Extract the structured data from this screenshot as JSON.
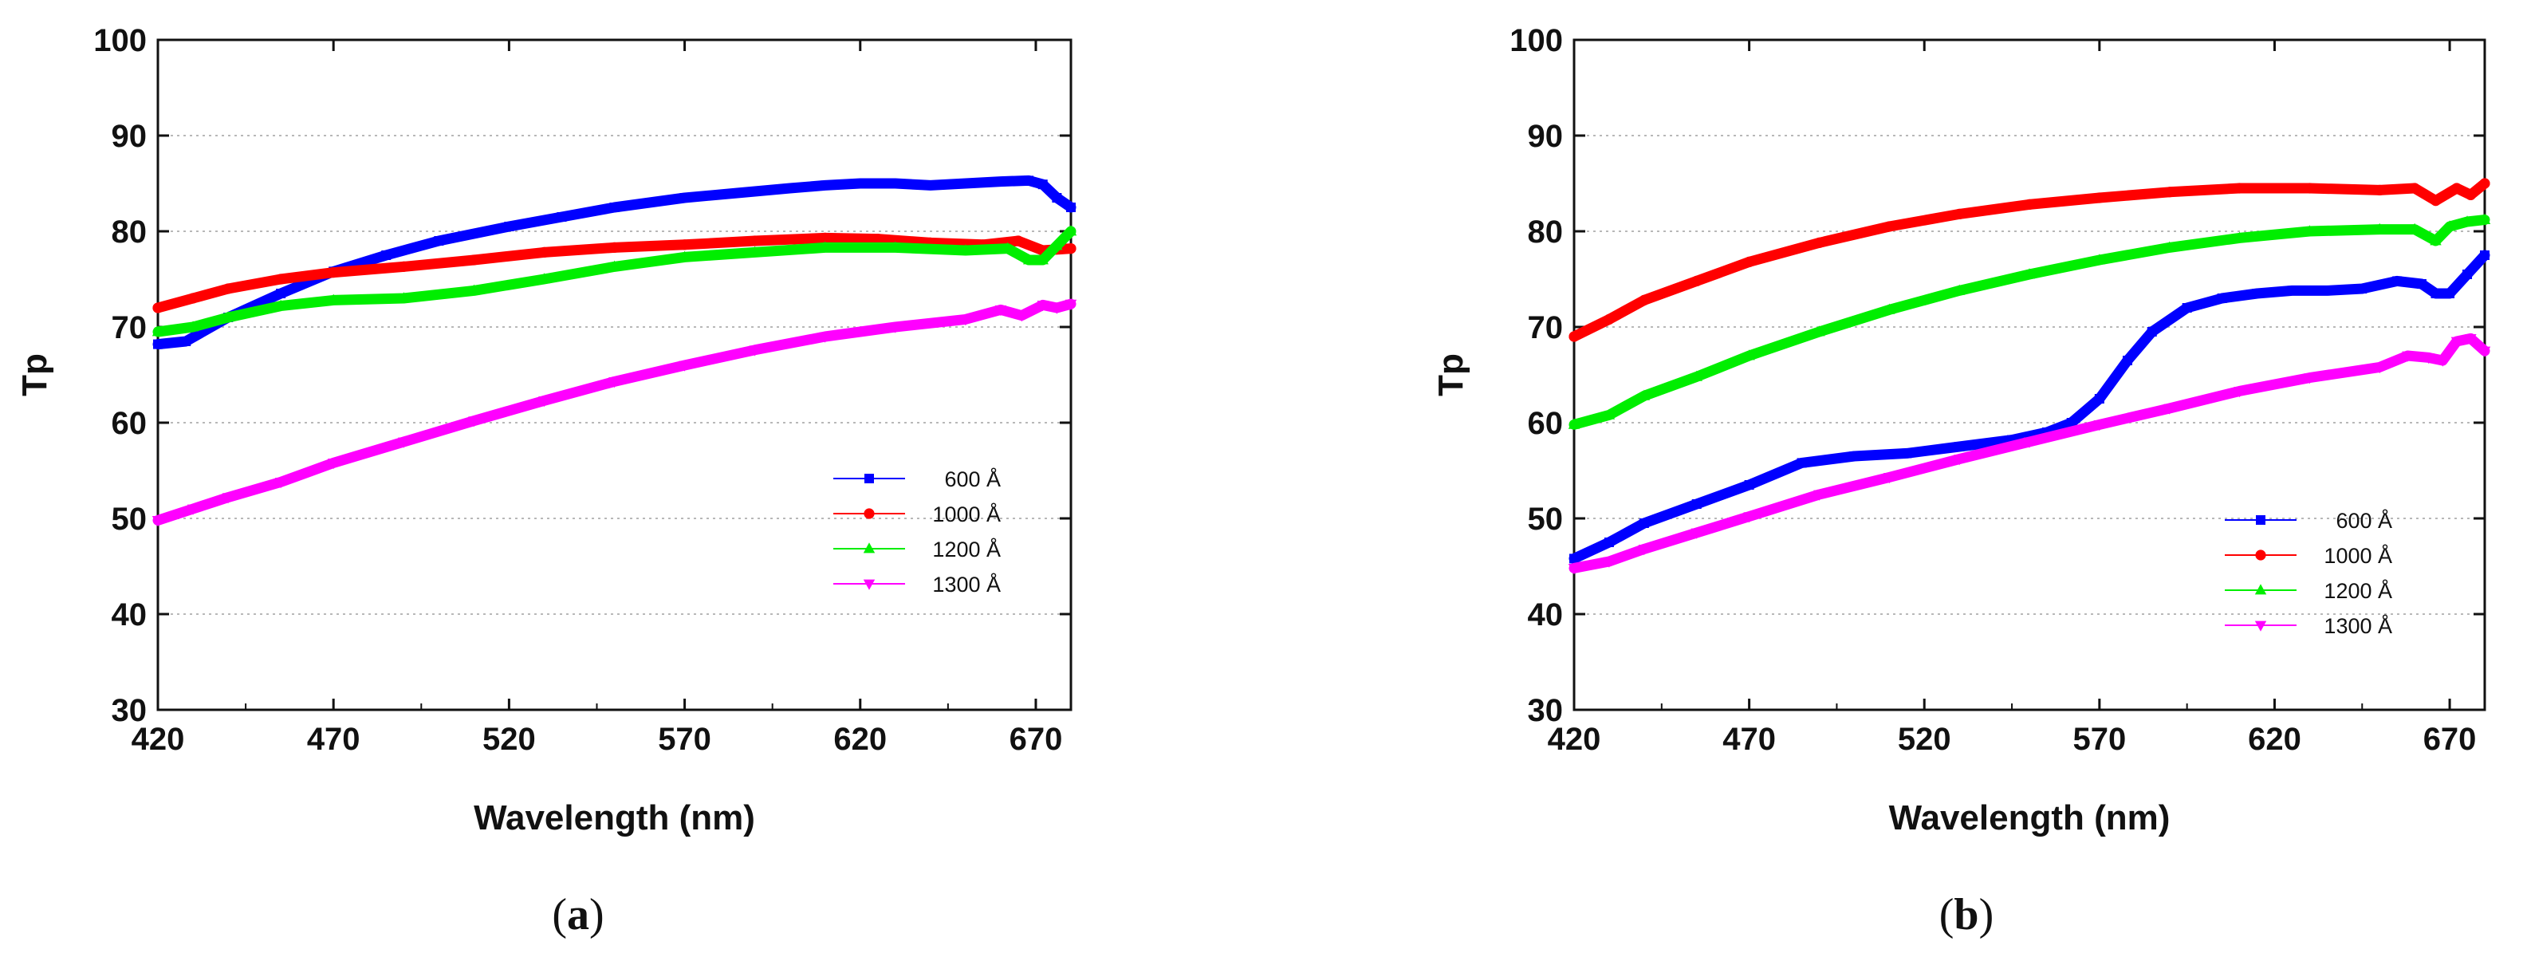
{
  "chart_data": [
    {
      "type": "line",
      "panel_caption": "a",
      "xlabel": "Wavelength (nm)",
      "ylabel": "Tp",
      "xlim": [
        420,
        680
      ],
      "ylim": [
        30,
        100
      ],
      "xticks": [
        420,
        470,
        520,
        570,
        620,
        670
      ],
      "yticks": [
        30,
        40,
        50,
        60,
        70,
        80,
        90,
        100
      ],
      "grid": "horizontal dotted",
      "legend_position": "lower-right",
      "series": [
        {
          "name": "600 Å",
          "color": "#0000ff",
          "marker": "square",
          "x": [
            420,
            428,
            440,
            455,
            470,
            485,
            500,
            520,
            535,
            550,
            570,
            585,
            600,
            610,
            620,
            630,
            640,
            650,
            660,
            668,
            672,
            676,
            680
          ],
          "y": [
            68.2,
            68.5,
            71.0,
            73.5,
            75.8,
            77.5,
            79.0,
            80.5,
            81.5,
            82.5,
            83.5,
            84.0,
            84.5,
            84.8,
            85.0,
            85.0,
            84.8,
            85.0,
            85.2,
            85.3,
            84.9,
            83.5,
            82.5
          ]
        },
        {
          "name": "1000 Å",
          "color": "#ff0000",
          "marker": "circle",
          "x": [
            420,
            430,
            440,
            455,
            470,
            490,
            510,
            530,
            550,
            570,
            590,
            610,
            625,
            640,
            655,
            665,
            672,
            680
          ],
          "y": [
            72.0,
            73.0,
            74.0,
            75.0,
            75.7,
            76.3,
            77.0,
            77.8,
            78.3,
            78.6,
            79.0,
            79.3,
            79.2,
            78.8,
            78.6,
            79.0,
            78.0,
            78.2
          ]
        },
        {
          "name": "1200 Å",
          "color": "#00ee00",
          "marker": "triangle-up",
          "x": [
            420,
            430,
            440,
            455,
            470,
            490,
            510,
            530,
            550,
            570,
            590,
            610,
            630,
            650,
            662,
            668,
            672,
            676,
            680
          ],
          "y": [
            69.5,
            70.0,
            71.0,
            72.2,
            72.8,
            73.0,
            73.8,
            75.0,
            76.3,
            77.3,
            77.8,
            78.3,
            78.3,
            78.0,
            78.2,
            77.0,
            77.0,
            78.5,
            80.0
          ]
        },
        {
          "name": "1300 Å",
          "color": "#ff00ff",
          "marker": "triangle-down",
          "x": [
            420,
            430,
            440,
            455,
            470,
            490,
            510,
            530,
            550,
            570,
            590,
            610,
            630,
            650,
            660,
            666,
            672,
            676,
            680
          ],
          "y": [
            49.8,
            51.0,
            52.2,
            53.8,
            55.8,
            58.0,
            60.2,
            62.3,
            64.3,
            66.0,
            67.6,
            69.0,
            70.0,
            70.8,
            71.8,
            71.2,
            72.3,
            72.0,
            72.4
          ]
        }
      ]
    },
    {
      "type": "line",
      "panel_caption": "b",
      "xlabel": "Wavelength (nm)",
      "ylabel": "Tp",
      "xlim": [
        420,
        680
      ],
      "ylim": [
        30,
        100
      ],
      "xticks": [
        420,
        470,
        520,
        570,
        620,
        670
      ],
      "yticks": [
        30,
        40,
        50,
        60,
        70,
        80,
        90,
        100
      ],
      "grid": "horizontal dotted",
      "legend_position": "lower-right",
      "series": [
        {
          "name": "600 Å",
          "color": "#0000ff",
          "marker": "square",
          "x": [
            420,
            430,
            440,
            455,
            470,
            485,
            500,
            515,
            530,
            545,
            555,
            562,
            570,
            578,
            585,
            595,
            605,
            615,
            625,
            635,
            645,
            655,
            662,
            666,
            670,
            675,
            680
          ],
          "y": [
            45.8,
            47.5,
            49.5,
            51.5,
            53.5,
            55.8,
            56.5,
            56.8,
            57.5,
            58.2,
            59.0,
            60.0,
            62.5,
            66.5,
            69.5,
            72.0,
            73.0,
            73.5,
            73.8,
            73.8,
            74.0,
            74.8,
            74.5,
            73.5,
            73.5,
            75.5,
            77.5
          ]
        },
        {
          "name": "1000 Å",
          "color": "#ff0000",
          "marker": "circle",
          "x": [
            420,
            430,
            440,
            455,
            470,
            490,
            510,
            530,
            550,
            570,
            590,
            610,
            630,
            650,
            660,
            666,
            672,
            676,
            680
          ],
          "y": [
            69.0,
            70.8,
            72.8,
            74.8,
            76.8,
            78.8,
            80.5,
            81.8,
            82.8,
            83.5,
            84.1,
            84.5,
            84.5,
            84.3,
            84.5,
            83.2,
            84.5,
            83.8,
            85.0
          ]
        },
        {
          "name": "1200 Å",
          "color": "#00ee00",
          "marker": "triangle-up",
          "x": [
            420,
            430,
            440,
            455,
            470,
            490,
            510,
            530,
            550,
            570,
            590,
            610,
            630,
            650,
            660,
            666,
            670,
            675,
            680
          ],
          "y": [
            59.8,
            60.8,
            62.8,
            64.8,
            67.0,
            69.5,
            71.8,
            73.8,
            75.5,
            77.0,
            78.3,
            79.3,
            80.0,
            80.2,
            80.2,
            79.0,
            80.5,
            81.0,
            81.2
          ]
        },
        {
          "name": "1300 Å",
          "color": "#ff00ff",
          "marker": "triangle-down",
          "x": [
            420,
            430,
            440,
            455,
            470,
            490,
            510,
            530,
            550,
            570,
            590,
            610,
            630,
            650,
            658,
            664,
            668,
            672,
            676,
            680
          ],
          "y": [
            44.8,
            45.5,
            46.8,
            48.5,
            50.2,
            52.5,
            54.3,
            56.2,
            58.0,
            59.8,
            61.5,
            63.3,
            64.7,
            65.8,
            67.0,
            66.8,
            66.5,
            68.5,
            68.8,
            67.5
          ]
        }
      ]
    }
  ]
}
